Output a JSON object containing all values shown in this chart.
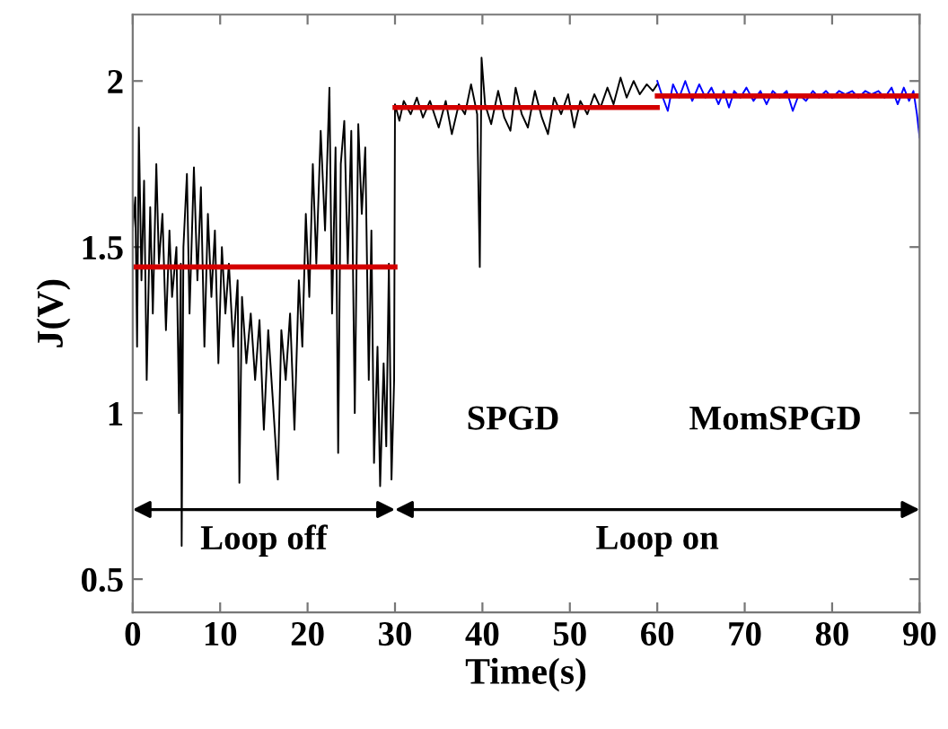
{
  "chart_data": {
    "type": "line",
    "xlabel": "Time(s)",
    "ylabel": "J(V)",
    "xlim": [
      0,
      90
    ],
    "xticks": [
      0,
      10,
      20,
      30,
      40,
      50,
      60,
      70,
      80,
      90
    ],
    "ylim": [
      0.4,
      2.2
    ],
    "yticks": [
      0.5,
      1,
      1.5,
      2
    ],
    "grid": false,
    "series": [
      {
        "color": "#000000",
        "x": [
          0,
          0.3,
          0.5,
          0.7,
          1,
          1.3,
          1.6,
          2,
          2.3,
          2.7,
          3,
          3.4,
          3.8,
          4.2,
          4.5,
          5,
          5.3,
          5.5,
          5.6,
          5.8,
          6.2,
          6.5,
          7,
          7.4,
          7.8,
          8.2,
          8.6,
          9,
          9.4,
          9.8,
          10.2,
          10.6,
          11,
          11.5,
          12,
          12.2,
          12.5,
          13,
          13.5,
          14,
          14.5,
          15,
          15.5,
          16,
          16.6,
          17,
          17.5,
          18,
          18.5,
          19,
          19.4,
          19.8,
          20.2,
          20.6,
          21,
          21.5,
          22,
          22.5,
          22.8,
          23.2,
          23.5,
          23.8,
          24.2,
          24.6,
          25,
          25.4,
          25.8,
          26.2,
          26.6,
          27,
          27.3,
          27.6,
          28,
          28.3,
          28.7,
          29,
          29.3,
          29.6,
          29.9,
          30,
          30.5,
          31,
          31.8,
          32.5,
          33.2,
          34,
          35,
          35.8,
          36.5,
          37.3,
          38,
          38.7,
          39.4,
          39.7,
          39.9,
          40.3,
          41,
          41.8,
          42.5,
          43.2,
          43.8,
          44.5,
          45.2,
          46,
          46.8,
          47.5,
          48.2,
          49,
          49.8,
          50.5,
          51.2,
          52,
          52.8,
          53.5,
          54.3,
          55,
          55.8,
          56.5,
          57.3,
          58,
          58.8,
          59.5,
          60
        ],
        "values": [
          1.55,
          1.65,
          1.2,
          1.86,
          1.4,
          1.7,
          1.1,
          1.62,
          1.3,
          1.75,
          1.45,
          1.6,
          1.25,
          1.55,
          1.35,
          1.5,
          1.0,
          1.45,
          0.6,
          1.5,
          1.72,
          1.3,
          1.74,
          1.4,
          1.68,
          1.2,
          1.6,
          1.35,
          1.55,
          1.15,
          1.5,
          1.3,
          1.45,
          1.2,
          1.4,
          0.79,
          1.35,
          1.15,
          1.3,
          1.1,
          1.28,
          0.95,
          1.25,
          1.05,
          0.8,
          1.25,
          1.1,
          1.3,
          0.95,
          1.4,
          1.2,
          1.6,
          1.35,
          1.75,
          1.45,
          1.85,
          1.55,
          1.98,
          1.3,
          1.8,
          0.88,
          1.75,
          1.88,
          1.45,
          1.85,
          1.0,
          1.87,
          1.6,
          1.8,
          1.1,
          1.55,
          0.85,
          1.2,
          0.78,
          1.15,
          0.9,
          1.45,
          0.8,
          1.1,
          1.93,
          1.88,
          1.94,
          1.9,
          1.95,
          1.89,
          1.94,
          1.86,
          1.94,
          1.84,
          1.93,
          1.9,
          1.99,
          1.9,
          1.44,
          2.07,
          1.93,
          1.87,
          1.97,
          1.89,
          1.85,
          1.98,
          1.9,
          1.86,
          1.97,
          1.89,
          1.84,
          1.95,
          1.9,
          1.96,
          1.86,
          1.94,
          1.9,
          1.96,
          1.92,
          1.98,
          1.93,
          2.01,
          1.95,
          2.0,
          1.96,
          1.99,
          1.97,
          1.99
        ]
      },
      {
        "color": "#0000ff",
        "x": [
          60,
          60.5,
          61.2,
          61.8,
          62.5,
          63.2,
          64,
          64.8,
          65.5,
          66.2,
          67,
          67.6,
          68.2,
          68.8,
          69.5,
          70.2,
          71,
          71.8,
          72.5,
          73.2,
          74,
          74.8,
          75.5,
          76.2,
          77,
          77.8,
          78.5,
          79.3,
          80,
          80.8,
          81.5,
          82.3,
          83,
          83.8,
          84.5,
          85.3,
          86,
          86.8,
          87.5,
          88.2,
          88.8,
          89.3,
          89.7,
          90
        ],
        "values": [
          2.0,
          1.96,
          1.91,
          1.99,
          1.95,
          2.0,
          1.94,
          1.99,
          1.95,
          1.98,
          1.93,
          1.97,
          1.92,
          1.97,
          1.95,
          1.98,
          1.94,
          1.97,
          1.93,
          1.97,
          1.95,
          1.97,
          1.91,
          1.96,
          1.94,
          1.97,
          1.95,
          1.97,
          1.95,
          1.97,
          1.96,
          1.97,
          1.95,
          1.97,
          1.96,
          1.97,
          1.95,
          1.98,
          1.93,
          1.98,
          1.94,
          1.97,
          1.9,
          1.83
        ]
      },
      {
        "color": "#d40000",
        "x": [
          0,
          30
        ],
        "values": [
          1.44,
          1.44
        ]
      },
      {
        "color": "#d40000",
        "x": [
          30,
          60
        ],
        "values": [
          1.92,
          1.92
        ]
      },
      {
        "color": "#d40000",
        "x": [
          60,
          90
        ],
        "values": [
          1.955,
          1.955
        ]
      }
    ],
    "annotations": [
      "Loop off",
      "Loop on",
      "SPGD",
      "MomSPGD"
    ]
  }
}
